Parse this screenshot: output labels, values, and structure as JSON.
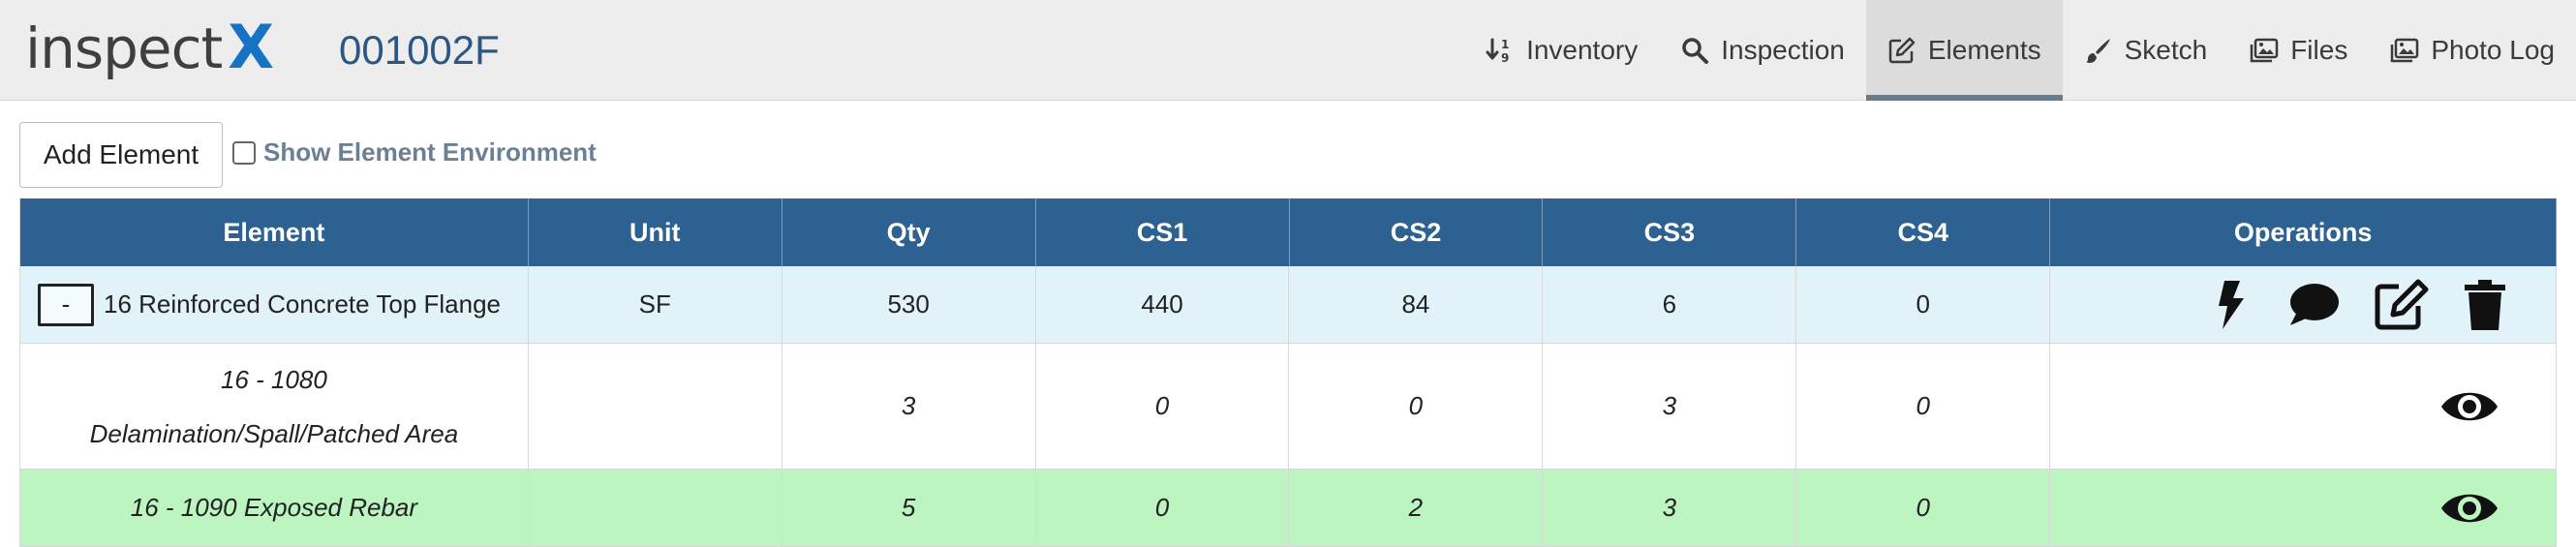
{
  "header": {
    "logo_word": "inspect",
    "logo_accent": "X",
    "structure_id": "001002F",
    "nav": [
      {
        "label": "Inventory",
        "icon": "sort-numeric-icon"
      },
      {
        "label": "Inspection",
        "icon": "search-icon"
      },
      {
        "label": "Elements",
        "icon": "edit-square-icon",
        "active": true
      },
      {
        "label": "Sketch",
        "icon": "paintbrush-icon"
      },
      {
        "label": "Files",
        "icon": "images-icon"
      },
      {
        "label": "Photo Log",
        "icon": "photo-images-icon"
      }
    ]
  },
  "toolbar": {
    "add_label": "Add Element",
    "env_label": "Show Element Environment",
    "env_checked": false
  },
  "table": {
    "columns": [
      "Element",
      "Unit",
      "Qty",
      "CS1",
      "CS2",
      "CS3",
      "CS4",
      "Operations"
    ],
    "element_row": {
      "toggle": "-",
      "name": "16 Reinforced Concrete Top Flange",
      "unit": "SF",
      "qty": "530",
      "cs1": "440",
      "cs2": "84",
      "cs3": "6",
      "cs4": "0",
      "operations": [
        "bolt-icon",
        "comment-icon",
        "edit-icon",
        "trash-icon"
      ]
    },
    "defect_rows": [
      {
        "name_line1": "16 - 1080",
        "name_line2": "Delamination/Spall/Patched Area",
        "unit": "",
        "qty": "3",
        "cs1": "0",
        "cs2": "0",
        "cs3": "3",
        "cs4": "0",
        "operation": "eye-icon"
      },
      {
        "name": "16 - 1090 Exposed Rebar",
        "unit": "",
        "qty": "5",
        "cs1": "0",
        "cs2": "2",
        "cs3": "3",
        "cs4": "0",
        "operation": "eye-icon"
      }
    ]
  },
  "colors": {
    "header_bg": "#2d6191",
    "element_row_bg": "#e1f2f8",
    "highlight_row_bg": "#bdf5c0",
    "logo_accent": "#1673c4",
    "structure_id": "#2d5783"
  }
}
